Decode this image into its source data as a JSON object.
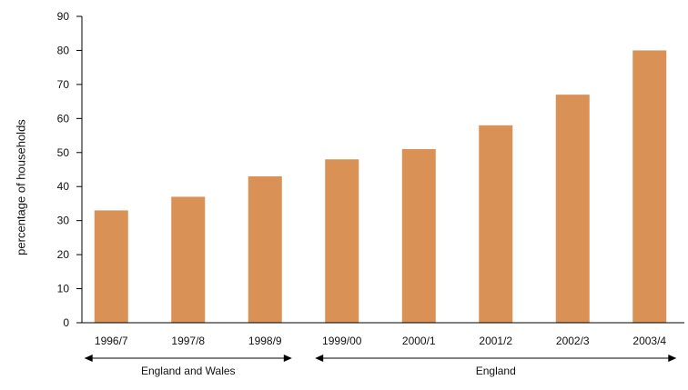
{
  "chart_data": {
    "type": "bar",
    "title": "",
    "xlabel": "",
    "ylabel": "percentage of households",
    "categories": [
      "1996/7",
      "1997/8",
      "1998/9",
      "1999/00",
      "2000/1",
      "2001/2",
      "2002/3",
      "2003/4"
    ],
    "values": [
      33,
      37,
      43,
      48,
      51,
      58,
      67,
      80
    ],
    "ylim": [
      0,
      90
    ],
    "yticks": [
      "0",
      "10",
      "20",
      "30",
      "40",
      "50",
      "60",
      "70",
      "80",
      "90"
    ],
    "grid": false,
    "bar_color": "#D99155",
    "annotations": [
      {
        "label": "England and Wales",
        "from_category": 0,
        "to_category": 2
      },
      {
        "label": "England",
        "from_category": 3,
        "to_category": 7
      }
    ]
  }
}
